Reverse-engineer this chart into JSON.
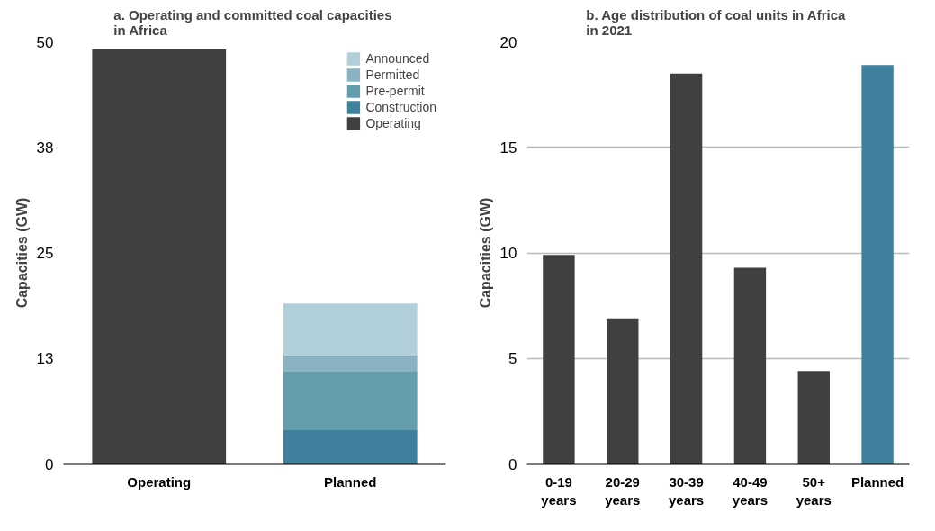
{
  "chart_data": [
    {
      "type": "bar",
      "title": "a.  Operating and committed coal capacities in Africa",
      "ylabel": "Capacities (GW)",
      "categories": [
        "Operating",
        "Planned"
      ],
      "stacked": true,
      "series": [
        {
          "name": "Operating",
          "color": "#404040",
          "values": [
            49.1,
            null
          ]
        },
        {
          "name": "Construction",
          "color": "#3f819d",
          "values": [
            null,
            4.0
          ]
        },
        {
          "name": "Pre-permit",
          "color": "#639dae",
          "values": [
            null,
            7.0
          ]
        },
        {
          "name": "Permitted",
          "color": "#89b3c2",
          "values": [
            null,
            1.9
          ]
        },
        {
          "name": "Announced",
          "color": "#b1cfd8",
          "values": [
            null,
            6.1
          ]
        }
      ],
      "ylim": [
        0,
        50
      ],
      "yticks": [
        0,
        {
          "value": 12.5,
          "label": "13"
        },
        25,
        {
          "value": 37.5,
          "label": "38"
        },
        50
      ],
      "grid": false,
      "legend": "top right"
    },
    {
      "type": "bar",
      "title": "b.  Age distribution of coal units in Africa in 2021",
      "ylabel": "Capacities (GW)",
      "categories": [
        "0-19 years",
        "20-29 years",
        "30-39 years",
        "40-49 years",
        "50+ years",
        "Planned"
      ],
      "values": [
        9.9,
        6.9,
        18.5,
        9.3,
        4.4,
        18.9
      ],
      "colors": [
        "#404040",
        "#404040",
        "#404040",
        "#404040",
        "#404040",
        "#3f819d"
      ],
      "ylim": [
        0,
        20
      ],
      "yticks": [
        0,
        5,
        10,
        15,
        20
      ],
      "grid": "y"
    }
  ]
}
